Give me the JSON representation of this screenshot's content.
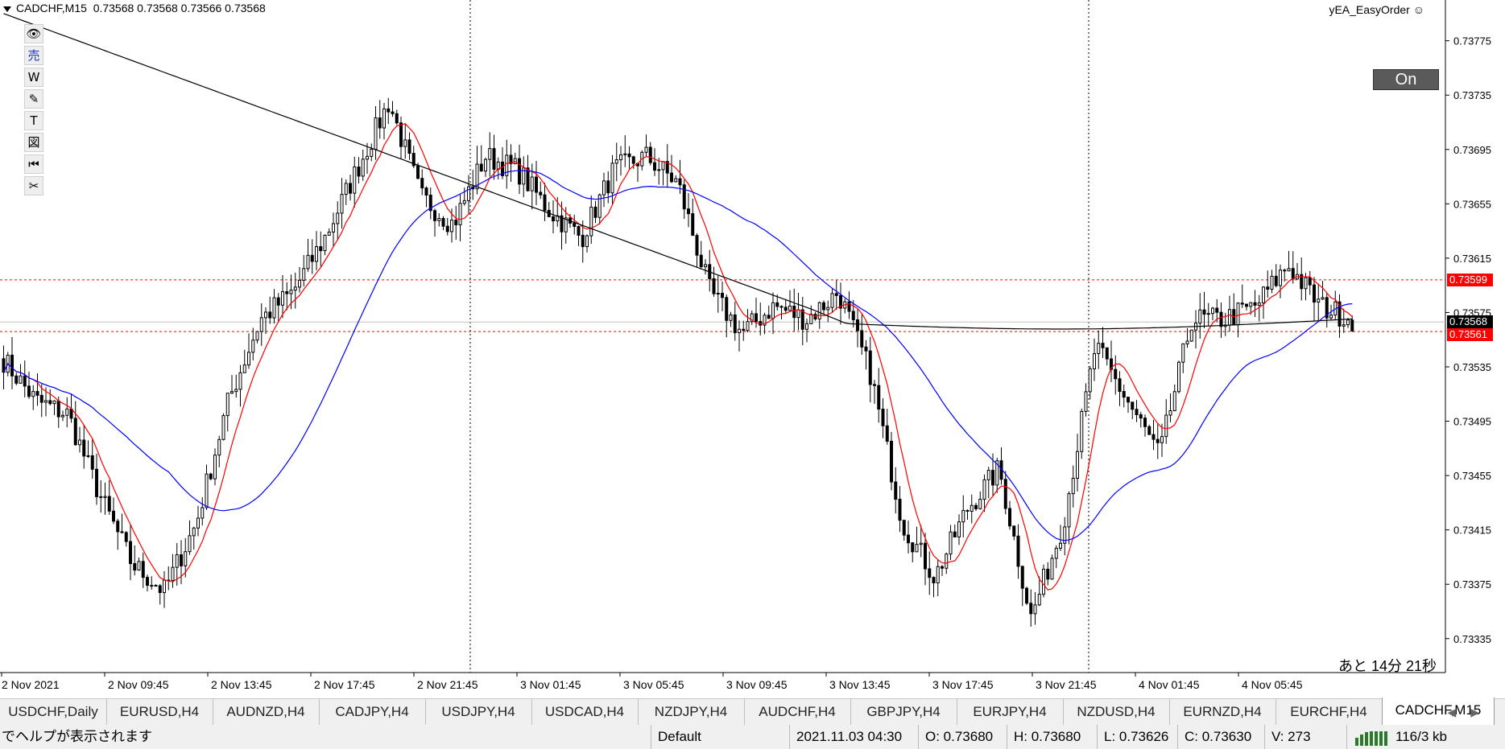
{
  "header": {
    "symbol": "CADCHF,M15",
    "ohlc": "0.73568 0.73568 0.73566 0.73568"
  },
  "ea": {
    "name": "yEA_EasyOrder",
    "icon": "smiley-icon",
    "button_label": "On"
  },
  "countdown": "あと 14分 21秒",
  "toolbar": [
    {
      "icon": "eye-icon",
      "glyph": "👁"
    },
    {
      "icon": "sell-icon",
      "glyph": "売"
    },
    {
      "icon": "w-icon",
      "glyph": "W"
    },
    {
      "icon": "pencil-icon",
      "glyph": "✎"
    },
    {
      "icon": "text-icon",
      "glyph": "T"
    },
    {
      "icon": "chart-icon",
      "glyph": "図"
    },
    {
      "icon": "rewind-icon",
      "glyph": "⏮"
    },
    {
      "icon": "scissors-icon",
      "glyph": "✂"
    }
  ],
  "price_markers": [
    {
      "label": "0.73599",
      "value": 0.73599,
      "bg": "#ff0000",
      "fg": "#ffffff"
    },
    {
      "label": "0.73568",
      "value": 0.73568,
      "bg": "#000000",
      "fg": "#ffffff"
    },
    {
      "label": "0.73561",
      "value": 0.73561,
      "bg": "#ff0000",
      "fg": "#ffffff"
    }
  ],
  "chart_data": {
    "type": "candlestick",
    "timeframe": "M15",
    "y_range": [
      0.7331,
      0.73805
    ],
    "y_ticks": [
      "0.73775",
      "0.73735",
      "0.73695",
      "0.73655",
      "0.73615",
      "0.73575",
      "0.73535",
      "0.73495",
      "0.73455",
      "0.73415",
      "0.73375",
      "0.73335"
    ],
    "x_ticks": [
      "2 Nov 2021",
      "2 Nov 09:45",
      "2 Nov 13:45",
      "2 Nov 17:45",
      "2 Nov 21:45",
      "3 Nov 01:45",
      "3 Nov 05:45",
      "3 Nov 09:45",
      "3 Nov 13:45",
      "3 Nov 17:45",
      "3 Nov 21:45",
      "4 Nov 01:45",
      "4 Nov 05:45"
    ],
    "horizontal_lines": [
      0.73599,
      0.73561
    ],
    "close_path": [
      0.7354,
      0.7351,
      0.735,
      0.7344,
      0.7339,
      0.7337,
      0.7342,
      0.7351,
      0.7357,
      0.7359,
      0.7363,
      0.7368,
      0.7373,
      0.7366,
      0.7364,
      0.7369,
      0.7368,
      0.7365,
      0.7363,
      0.7368,
      0.7369,
      0.7367,
      0.7359,
      0.7356,
      0.7358,
      0.7357,
      0.7359,
      0.7353,
      0.7342,
      0.7338,
      0.7343,
      0.7346,
      0.7335,
      0.7342,
      0.7355,
      0.7351,
      0.7347,
      0.7357,
      0.7357,
      0.7358,
      0.7361,
      0.7358,
      0.7357
    ]
  },
  "tabs": [
    "USDCHF,Daily",
    "EURUSD,H4",
    "AUDNZD,H4",
    "CADJPY,H4",
    "USDJPY,H4",
    "USDCAD,H4",
    "NZDJPY,H4",
    "AUDCHF,H4",
    "GBPJPY,H4",
    "EURJPY,H4",
    "NZDUSD,H4",
    "EURNZD,H4",
    "EURCHF,H4",
    "CADCHF,M15"
  ],
  "active_tab": "CADCHF,M15",
  "status": {
    "help": "でヘルプが表示されます",
    "profile": "Default",
    "datetime": "2021.11.03 04:30",
    "open": "O: 0.73680",
    "high": "H: 0.73680",
    "low": "L: 0.73626",
    "close": "C: 0.73630",
    "volume": "V: 273",
    "traffic": "116/3 kb"
  }
}
